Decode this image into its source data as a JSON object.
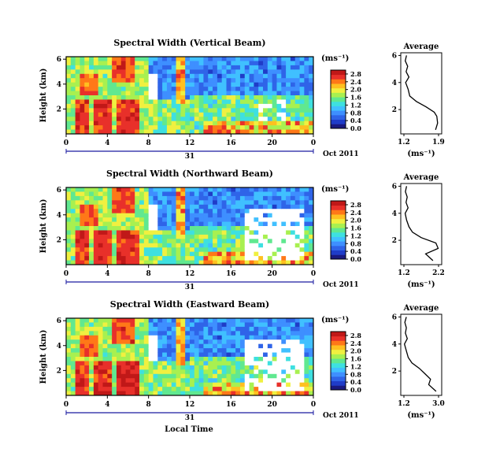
{
  "figure": {
    "xlabel": "Local Time",
    "date_label": "Oct 2011",
    "day_label": "31",
    "colorbar_unit": "(ms⁻¹)",
    "profile_title": "Average",
    "profile_xlabel": "(ms⁻¹)"
  },
  "colors": {
    "heatmap_scale": [
      "#1a1a80",
      "#1f3cc8",
      "#2f64e8",
      "#3e8fff",
      "#40c0ff",
      "#3ee0e0",
      "#60e890",
      "#a8f050",
      "#f0f040",
      "#ffc020",
      "#ff7818",
      "#e8302a",
      "#c01818"
    ],
    "axis": "#000000",
    "time_axis": "#1a1aa0"
  },
  "chart_data": [
    {
      "type": "heatmap",
      "title": "Spectral Width (Vertical Beam)",
      "xlabel": "Local Time",
      "ylabel": "Height (km)",
      "x_ticks": [
        "0",
        "4",
        "8",
        "12",
        "16",
        "20",
        "0"
      ],
      "y_ticks": [
        "2",
        "4",
        "6"
      ],
      "colorbar_ticks": [
        "0.0",
        "0.4",
        "0.8",
        "1.2",
        "1.6",
        "2.0",
        "2.4",
        "2.8"
      ],
      "colorbar_range": [
        0,
        3.0
      ],
      "profile": {
        "title": "Average",
        "x_ticks": [
          "1.2",
          "1.9"
        ],
        "y_ticks": [
          "2",
          "4",
          "6"
        ],
        "xlim": [
          1.0,
          2.0
        ],
        "heights": [
          0.5,
          1.0,
          1.5,
          1.8,
          2.2,
          2.6,
          3.0,
          3.5,
          4.0,
          4.4,
          4.8,
          5.2,
          5.6,
          6.0
        ],
        "values": [
          1.85,
          1.9,
          1.88,
          1.82,
          1.62,
          1.38,
          1.22,
          1.18,
          1.12,
          1.2,
          1.13,
          1.17,
          1.11,
          1.14
        ]
      }
    },
    {
      "type": "heatmap",
      "title": "Spectral Width (Northward Beam)",
      "xlabel": "Local Time",
      "ylabel": "Height (km)",
      "x_ticks": [
        "0",
        "4",
        "8",
        "12",
        "16",
        "20",
        "0"
      ],
      "y_ticks": [
        "2",
        "4",
        "6"
      ],
      "colorbar_ticks": [
        "0.0",
        "0.4",
        "0.8",
        "1.2",
        "1.6",
        "2.0",
        "2.4",
        "2.8"
      ],
      "colorbar_range": [
        0,
        3.0
      ],
      "profile": {
        "title": "Average",
        "x_ticks": [
          "1.2",
          "2.2"
        ],
        "y_ticks": [
          "2",
          "4",
          "6"
        ],
        "xlim": [
          1.0,
          2.4
        ],
        "heights": [
          0.5,
          1.0,
          1.4,
          1.8,
          2.2,
          2.6,
          3.0,
          3.5,
          4.0,
          4.4,
          4.8,
          5.2,
          5.6,
          6.0
        ],
        "values": [
          2.1,
          1.85,
          2.28,
          2.2,
          1.7,
          1.4,
          1.28,
          1.2,
          1.15,
          1.25,
          1.18,
          1.22,
          1.16,
          1.2
        ]
      }
    },
    {
      "type": "heatmap",
      "title": "Spectral Width (Eastward Beam)",
      "xlabel": "Local Time",
      "ylabel": "Height (km)",
      "x_ticks": [
        "0",
        "4",
        "8",
        "12",
        "16",
        "20",
        "0"
      ],
      "y_ticks": [
        "2",
        "4",
        "6"
      ],
      "colorbar_ticks": [
        "0.0",
        "0.4",
        "0.8",
        "1.2",
        "1.6",
        "2.0",
        "2.4",
        "2.8"
      ],
      "colorbar_range": [
        0,
        3.0
      ],
      "profile": {
        "title": "Average",
        "x_ticks": [
          "1.2",
          "3.0"
        ],
        "y_ticks": [
          "2",
          "4",
          "6"
        ],
        "xlim": [
          1.0,
          3.2
        ],
        "heights": [
          0.5,
          1.0,
          1.4,
          1.8,
          2.2,
          2.6,
          3.0,
          3.5,
          4.0,
          4.4,
          4.8,
          5.2,
          5.6,
          6.0
        ],
        "values": [
          2.9,
          2.5,
          2.6,
          2.3,
          2.0,
          1.6,
          1.4,
          1.3,
          1.2,
          1.35,
          1.25,
          1.3,
          1.22,
          1.3
        ]
      }
    }
  ]
}
